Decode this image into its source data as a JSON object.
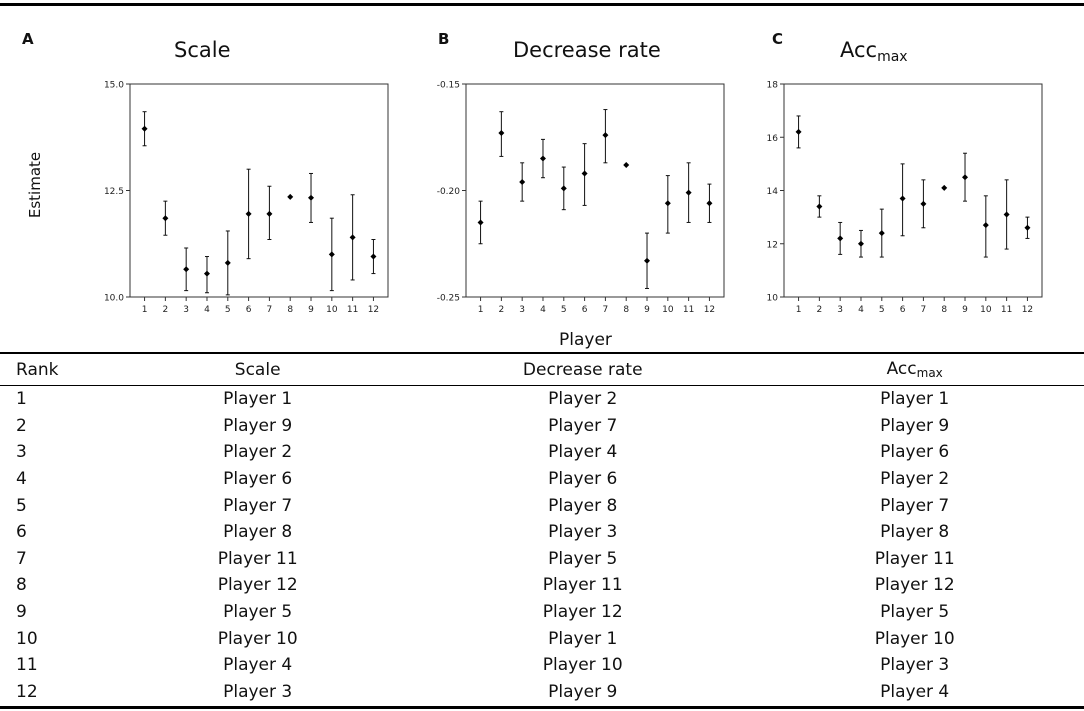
{
  "figure": {
    "y_axis_label": "Estimate",
    "x_axis_label": "Player"
  },
  "chart_data": [
    {
      "type": "scatter",
      "panel": "A",
      "title": "Scale",
      "x": [
        1,
        2,
        3,
        4,
        5,
        6,
        7,
        8,
        9,
        10,
        11,
        12
      ],
      "y": [
        13.95,
        11.85,
        10.65,
        10.55,
        10.8,
        11.95,
        11.95,
        12.35,
        12.33,
        11.0,
        11.4,
        10.95
      ],
      "ci_low": [
        13.55,
        11.45,
        10.15,
        10.1,
        10.05,
        10.9,
        11.35,
        12.35,
        11.75,
        10.15,
        10.4,
        10.55
      ],
      "ci_high": [
        14.35,
        12.25,
        11.15,
        10.95,
        11.55,
        13.0,
        12.6,
        12.35,
        12.9,
        11.85,
        12.4,
        11.35
      ],
      "ylim": [
        10.0,
        15.0
      ],
      "yticks": [
        "10.0",
        "12.5",
        "15.0"
      ],
      "ytick_values": [
        10.0,
        12.5,
        15.0
      ]
    },
    {
      "type": "scatter",
      "panel": "B",
      "title": "Decrease rate",
      "x": [
        1,
        2,
        3,
        4,
        5,
        6,
        7,
        8,
        9,
        10,
        11,
        12
      ],
      "y": [
        -0.215,
        -0.173,
        -0.196,
        -0.185,
        -0.199,
        -0.192,
        -0.174,
        -0.188,
        -0.233,
        -0.206,
        -0.201,
        -0.206
      ],
      "ci_low": [
        -0.225,
        -0.184,
        -0.205,
        -0.194,
        -0.209,
        -0.207,
        -0.187,
        -0.188,
        -0.246,
        -0.22,
        -0.215,
        -0.215
      ],
      "ci_high": [
        -0.205,
        -0.163,
        -0.187,
        -0.176,
        -0.189,
        -0.178,
        -0.162,
        -0.188,
        -0.22,
        -0.193,
        -0.187,
        -0.197
      ],
      "ylim": [
        -0.25,
        -0.15
      ],
      "yticks": [
        "-0.25",
        "-0.20",
        "-0.15"
      ],
      "ytick_values": [
        -0.25,
        -0.2,
        -0.15
      ]
    },
    {
      "type": "scatter",
      "panel": "C",
      "title": "Acc",
      "title_sub": "max",
      "x": [
        1,
        2,
        3,
        4,
        5,
        6,
        7,
        8,
        9,
        10,
        11,
        12
      ],
      "y": [
        16.2,
        13.4,
        12.2,
        12.0,
        12.4,
        13.7,
        13.5,
        14.1,
        14.5,
        12.7,
        13.1,
        12.6
      ],
      "ci_low": [
        15.6,
        13.0,
        11.6,
        11.5,
        11.5,
        12.3,
        12.6,
        14.1,
        13.6,
        11.5,
        11.8,
        12.2
      ],
      "ci_high": [
        16.8,
        13.8,
        12.8,
        12.5,
        13.3,
        15.0,
        14.4,
        14.1,
        15.4,
        13.8,
        14.4,
        13.0
      ],
      "ylim": [
        10,
        18
      ],
      "yticks": [
        "10",
        "12",
        "14",
        "16",
        "18"
      ],
      "ytick_values": [
        10,
        12,
        14,
        16,
        18
      ]
    }
  ],
  "table": {
    "headers": {
      "rank": "Rank",
      "scale": "Scale",
      "decrease": "Decrease rate",
      "acc": "Acc",
      "acc_sub": "max"
    },
    "rows": [
      [
        "1",
        "Player 1",
        "Player 2",
        "Player 1"
      ],
      [
        "2",
        "Player 9",
        "Player 7",
        "Player 9"
      ],
      [
        "3",
        "Player 2",
        "Player 4",
        "Player 6"
      ],
      [
        "4",
        "Player 6",
        "Player 6",
        "Player 2"
      ],
      [
        "5",
        "Player 7",
        "Player 8",
        "Player 7"
      ],
      [
        "6",
        "Player 8",
        "Player 3",
        "Player 8"
      ],
      [
        "7",
        "Player 11",
        "Player 5",
        "Player 11"
      ],
      [
        "8",
        "Player 12",
        "Player 11",
        "Player 12"
      ],
      [
        "9",
        "Player 5",
        "Player 12",
        "Player 5"
      ],
      [
        "10",
        "Player 10",
        "Player 1",
        "Player 10"
      ],
      [
        "11",
        "Player 4",
        "Player 10",
        "Player 3"
      ],
      [
        "12",
        "Player 3",
        "Player 9",
        "Player 4"
      ]
    ]
  }
}
